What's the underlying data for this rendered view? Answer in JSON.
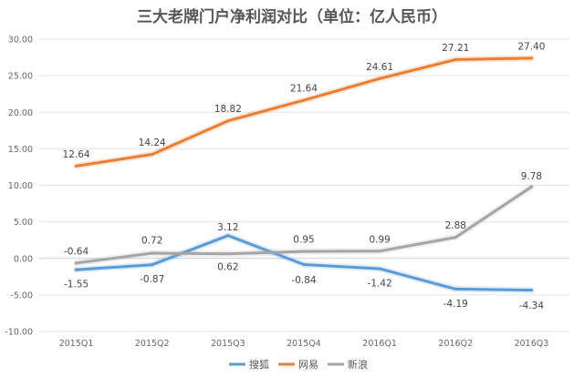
{
  "chart_data": {
    "type": "line",
    "title": "三大老牌门户净利润对比（单位：亿人民币）",
    "xlabel": "",
    "ylabel": "",
    "categories": [
      "2015Q1",
      "2015Q2",
      "2015Q3",
      "2015Q4",
      "2016Q1",
      "2016Q2",
      "2016Q3"
    ],
    "ylim": [
      -10,
      30
    ],
    "yticks": [
      30,
      25,
      20,
      15,
      10,
      5,
      0,
      -5,
      -10
    ],
    "ytick_labels": [
      "30.00",
      "25.00",
      "20.00",
      "15.00",
      "10.00",
      "5.00",
      "0.00",
      "-5.00",
      "-10.00"
    ],
    "grid": "horizontal",
    "legend_position": "bottom",
    "series": [
      {
        "name": "搜狐",
        "color": "#5b9bd5",
        "values": [
          -1.55,
          -0.87,
          3.12,
          -0.84,
          -1.42,
          -4.19,
          -4.34
        ],
        "labels": [
          "-1.55",
          "-0.87",
          "3.12",
          "-0.84",
          "-1.42",
          "-4.19",
          "-4.34"
        ]
      },
      {
        "name": "网易",
        "color": "#ed7d31",
        "values": [
          12.64,
          14.24,
          18.82,
          21.64,
          24.61,
          27.21,
          27.4
        ],
        "labels": [
          "12.64",
          "14.24",
          "18.82",
          "21.64",
          "24.61",
          "27.21",
          "27.40"
        ]
      },
      {
        "name": "新浪",
        "color": "#a5a5a5",
        "values": [
          -0.64,
          0.72,
          0.62,
          0.95,
          0.99,
          2.88,
          9.78
        ],
        "labels": [
          "-0.64",
          "0.72",
          "0.62",
          "0.95",
          "0.99",
          "2.88",
          "9.78"
        ]
      }
    ]
  }
}
